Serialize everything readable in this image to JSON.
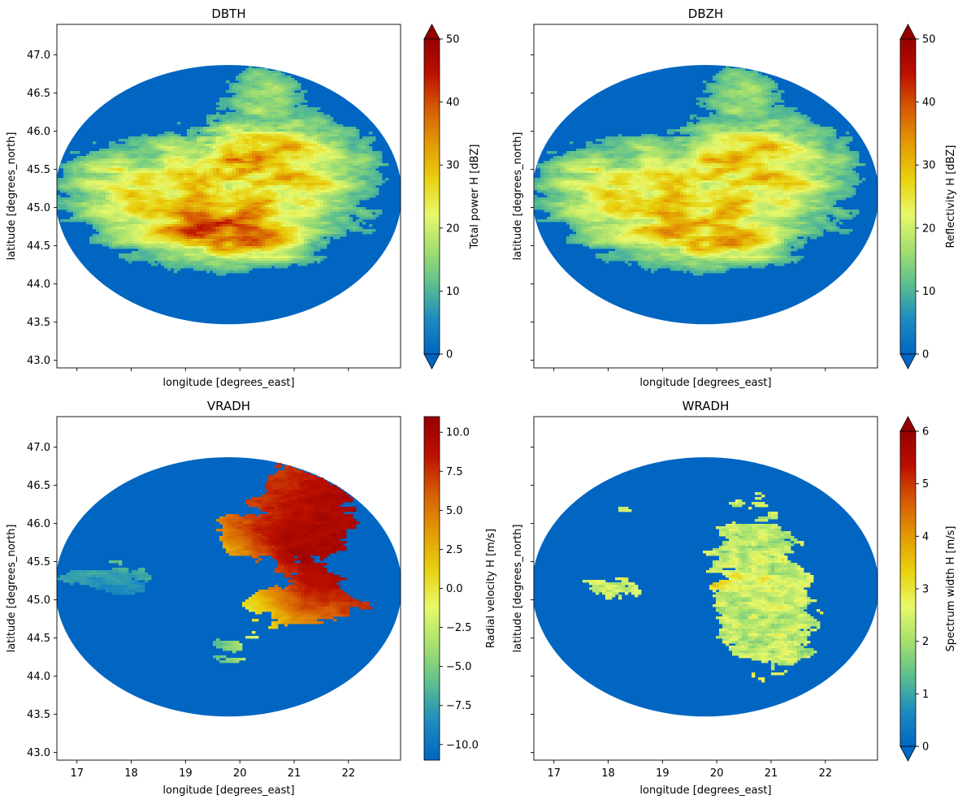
{
  "chart_data": [
    {
      "type": "heatmap",
      "title": "DBTH",
      "xlabel": "longitude [degrees_east]",
      "ylabel": "latitude [degrees_north]",
      "xlim": [
        16.63,
        22.96
      ],
      "ylim": [
        42.9,
        47.4
      ],
      "xticks": [],
      "yticks": [
        "43.0",
        "43.5",
        "44.0",
        "44.5",
        "45.0",
        "45.5",
        "46.0",
        "46.5",
        "47.0"
      ],
      "colorbar": {
        "label": "Total power H [dBZ]",
        "range": [
          0,
          50
        ],
        "ticks": [
          "0",
          "10",
          "20",
          "30",
          "40",
          "50"
        ],
        "extend": "both"
      },
      "pattern": "dbth"
    },
    {
      "type": "heatmap",
      "title": "DBZH",
      "xlabel": "longitude [degrees_east]",
      "ylabel": "latitude [degrees_north]",
      "xlim": [
        16.63,
        22.96
      ],
      "ylim": [
        42.9,
        47.4
      ],
      "xticks": [],
      "yticks": [],
      "colorbar": {
        "label": "Reflectivity H [dBZ]",
        "range": [
          0,
          50
        ],
        "ticks": [
          "0",
          "10",
          "20",
          "30",
          "40",
          "50"
        ],
        "extend": "both"
      },
      "pattern": "dbzh"
    },
    {
      "type": "heatmap",
      "title": "VRADH",
      "xlabel": "longitude [degrees_east]",
      "ylabel": "latitude [degrees_north]",
      "xlim": [
        16.63,
        22.96
      ],
      "ylim": [
        42.9,
        47.4
      ],
      "xticks": [
        "17",
        "18",
        "19",
        "20",
        "21",
        "22"
      ],
      "yticks": [
        "43.0",
        "43.5",
        "44.0",
        "44.5",
        "45.0",
        "45.5",
        "46.0",
        "46.5",
        "47.0"
      ],
      "colorbar": {
        "label": "Radial velocity H [m/s]",
        "range": [
          -11,
          11
        ],
        "ticks": [
          "−10.0",
          "−7.5",
          "−5.0",
          "−2.5",
          "0.0",
          "2.5",
          "5.0",
          "7.5",
          "10.0"
        ],
        "extend": "neither"
      },
      "pattern": "vradh"
    },
    {
      "type": "heatmap",
      "title": "WRADH",
      "xlabel": "longitude [degrees_east]",
      "ylabel": "latitude [degrees_north]",
      "xlim": [
        16.63,
        22.96
      ],
      "ylim": [
        42.9,
        47.4
      ],
      "xticks": [
        "17",
        "18",
        "19",
        "20",
        "21",
        "22"
      ],
      "yticks": [],
      "colorbar": {
        "label": "Spectrum width H [m/s]",
        "range": [
          0,
          6
        ],
        "ticks": [
          "0",
          "1",
          "2",
          "3",
          "4",
          "5",
          "6"
        ],
        "extend": "both"
      },
      "pattern": "wradh"
    }
  ],
  "colormap": [
    "#0066c2",
    "#1d8bbf",
    "#5cbf8e",
    "#a6e06e",
    "#e8f86a",
    "#e8d10e",
    "#e39a04",
    "#d65c04",
    "#bb1000",
    "#960000"
  ],
  "background_color": "#0066c2",
  "radar_site": {
    "lon": 19.79,
    "lat": 45.17,
    "radius_deg": 2.25
  }
}
